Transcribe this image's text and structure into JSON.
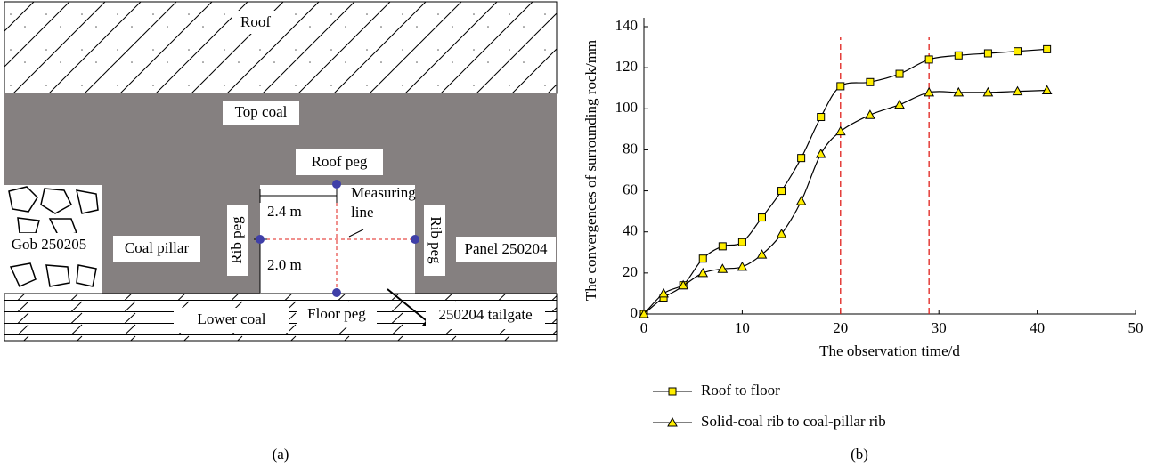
{
  "diagram": {
    "roof": "Roof",
    "top_coal": "Top coal",
    "roof_peg": "Roof peg",
    "measuring_line": [
      "Measuring",
      "line"
    ],
    "width": "2.4 m",
    "height": "2.0 m",
    "rib_peg_left": "Rib peg",
    "rib_peg_right": "Rib peg",
    "gob": "Gob 250205",
    "coal_pillar": "Coal pillar",
    "panel": "Panel 250204",
    "lower_coal": "Lower coal",
    "floor_peg": "Floor peg",
    "tailgate": "250204 tailgate",
    "caption": "(a)"
  },
  "chart_data": {
    "type": "line",
    "caption": "(b)",
    "x_label": "The observation time/d",
    "y_label": "The convergences of surrounding rock/mm",
    "xlim": [
      0,
      50
    ],
    "xticks": [
      0,
      10,
      20,
      30,
      40,
      50
    ],
    "ylim": [
      0,
      140
    ],
    "yticks": [
      0,
      20,
      40,
      60,
      80,
      100,
      120,
      140
    ],
    "vlines": [
      20,
      29
    ],
    "vline_color": "#e0201b",
    "series": [
      {
        "name": "Roof to floor",
        "color": "#000000",
        "marker": "square",
        "marker_fill": "#ffee00",
        "x": [
          0,
          2,
          4,
          6,
          8,
          10,
          12,
          14,
          16,
          18,
          20,
          23,
          26,
          29,
          32,
          35,
          38,
          41
        ],
        "values": [
          0,
          8,
          14,
          27,
          33,
          35,
          47,
          60,
          76,
          96,
          111,
          113,
          117,
          124,
          126,
          127,
          128,
          129
        ]
      },
      {
        "name": "Solid-coal rib to coal-pillar rib",
        "color": "#000000",
        "marker": "triangle",
        "marker_fill": "#ffee00",
        "x": [
          0,
          2,
          4,
          6,
          8,
          10,
          12,
          14,
          16,
          18,
          20,
          23,
          26,
          29,
          32,
          35,
          38,
          41
        ],
        "values": [
          0,
          10,
          14,
          20,
          22,
          23,
          29,
          39,
          55,
          78,
          89,
          97,
          102,
          108,
          108,
          108,
          108.5,
          109
        ]
      }
    ]
  }
}
